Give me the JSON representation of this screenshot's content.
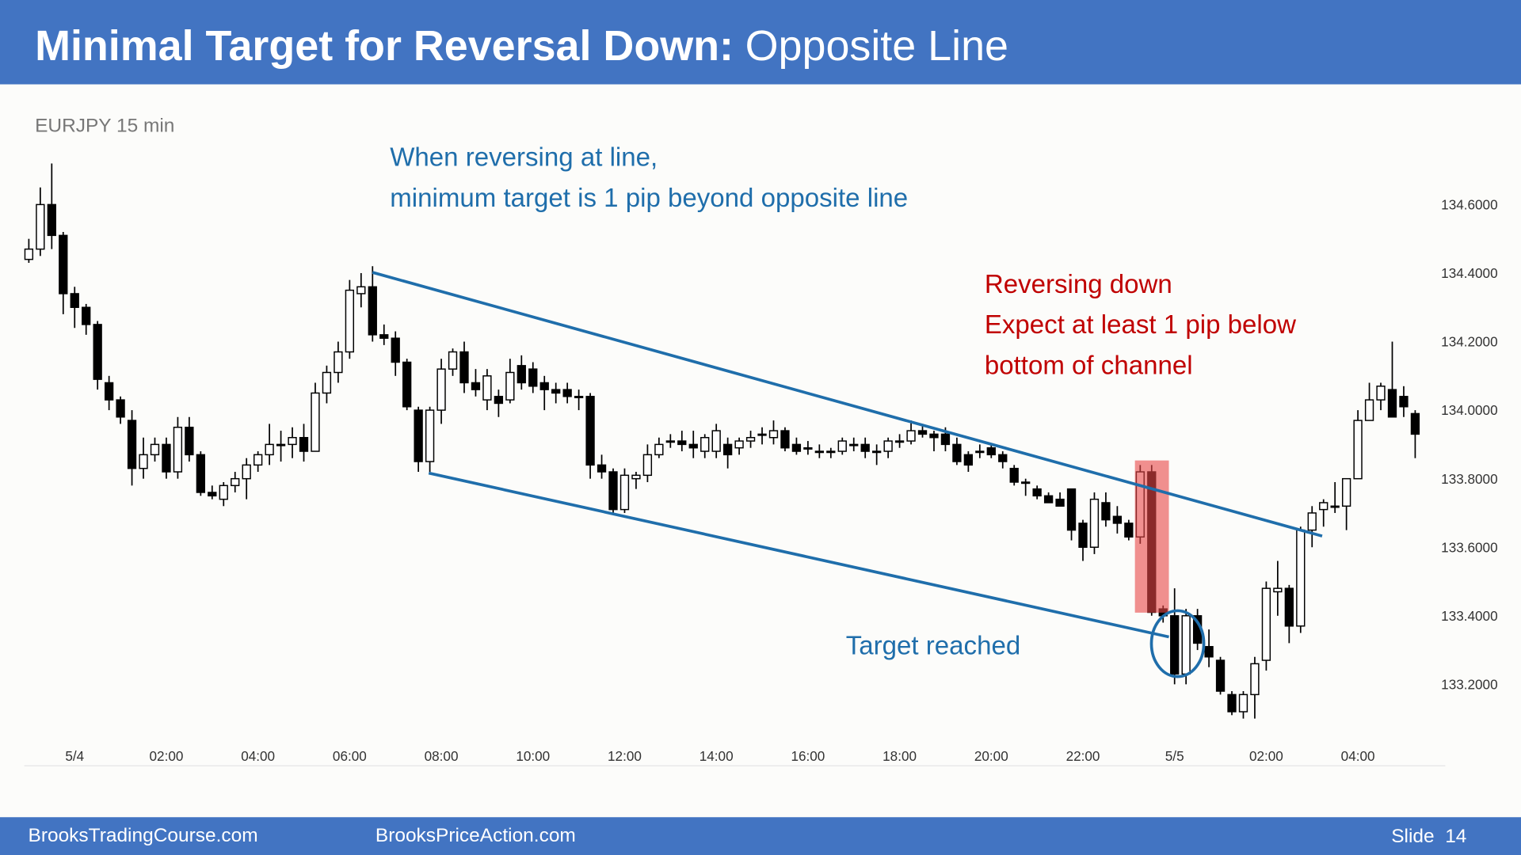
{
  "chart_data": {
    "type": "candlestick",
    "title": [
      "Minimal Target for Reversal Down:",
      "Opposite Line"
    ],
    "subtitle": "EURJPY 15 min",
    "annotations": [
      "When reversing at line,",
      "minimum target is 1 pip beyond opposite line",
      "Reversing down",
      "Expect at least 1 pip below",
      "bottom of channel",
      "Target reached"
    ],
    "up_color": "#ffffff",
    "down_color": "#000000",
    "grid": false,
    "ylim": [
      133.03,
      134.75
    ],
    "yticks": [
      {
        "value": 134.6,
        "label": "134.6000"
      },
      {
        "value": 134.4,
        "label": "134.4000"
      },
      {
        "value": 134.2,
        "label": "134.2000"
      },
      {
        "value": 134.0,
        "label": "134.0000"
      },
      {
        "value": 133.8,
        "label": "133.8000"
      },
      {
        "value": 133.6,
        "label": "133.6000"
      },
      {
        "value": 133.4,
        "label": "133.4000"
      },
      {
        "value": 133.2,
        "label": "133.2000"
      }
    ],
    "xlim": [
      -1.1,
      29.4
    ],
    "xticks": [
      {
        "value": 0,
        "label": "5/4"
      },
      {
        "value": 2,
        "label": "02:00"
      },
      {
        "value": 4,
        "label": "04:00"
      },
      {
        "value": 6,
        "label": "06:00"
      },
      {
        "value": 8,
        "label": "08:00"
      },
      {
        "value": 10,
        "label": "10:00"
      },
      {
        "value": 12,
        "label": "12:00"
      },
      {
        "value": 14,
        "label": "14:00"
      },
      {
        "value": 16,
        "label": "16:00"
      },
      {
        "value": 18,
        "label": "18:00"
      },
      {
        "value": 20,
        "label": "20:00"
      },
      {
        "value": 22,
        "label": "22:00"
      },
      {
        "value": 24,
        "label": "5/5"
      },
      {
        "value": 26,
        "label": "02:00"
      },
      {
        "value": 28,
        "label": "04:00"
      }
    ],
    "x": [
      -1,
      -0.75,
      -0.5,
      -0.25,
      0,
      0.25,
      0.5,
      0.75,
      1,
      1.25,
      1.5,
      1.75,
      2,
      2.25,
      2.5,
      2.75,
      3,
      3.25,
      3.5,
      3.75,
      4,
      4.25,
      4.5,
      4.75,
      5,
      5.25,
      5.5,
      5.75,
      6,
      6.25,
      6.5,
      6.75,
      7,
      7.25,
      7.5,
      7.75,
      8,
      8.25,
      8.5,
      8.75,
      9,
      9.25,
      9.5,
      9.75,
      10,
      10.25,
      10.5,
      10.75,
      11,
      11.25,
      11.5,
      11.75,
      12,
      12.25,
      12.5,
      12.75,
      13,
      13.25,
      13.5,
      13.75,
      14,
      14.25,
      14.5,
      14.75,
      15,
      15.25,
      15.5,
      15.75,
      16,
      16.25,
      16.5,
      16.75,
      17,
      17.25,
      17.5,
      17.75,
      18,
      18.25,
      18.5,
      18.75,
      19,
      19.25,
      19.5,
      19.75,
      20,
      20.25,
      20.5,
      20.75,
      21,
      21.25,
      21.5,
      21.75,
      22,
      22.25,
      22.5,
      22.75,
      23,
      23.25,
      23.5,
      23.75,
      24,
      24.25,
      24.5,
      24.75,
      25,
      25.25,
      25.5,
      25.75,
      26,
      26.25,
      26.5,
      26.75,
      27,
      27.25,
      27.5,
      27.75,
      28,
      28.25,
      28.5,
      28.75,
      29,
      29.25
    ],
    "ohlc": [
      [
        134.44,
        134.5,
        134.43,
        134.47
      ],
      [
        134.47,
        134.65,
        134.45,
        134.6
      ],
      [
        134.6,
        134.72,
        134.47,
        134.51
      ],
      [
        134.51,
        134.52,
        134.28,
        134.34
      ],
      [
        134.34,
        134.36,
        134.24,
        134.3
      ],
      [
        134.3,
        134.31,
        134.22,
        134.25
      ],
      [
        134.25,
        134.26,
        134.06,
        134.09
      ],
      [
        134.08,
        134.1,
        134.0,
        134.03
      ],
      [
        134.03,
        134.04,
        133.96,
        133.98
      ],
      [
        133.97,
        134.0,
        133.78,
        133.83
      ],
      [
        133.83,
        133.92,
        133.8,
        133.87
      ],
      [
        133.87,
        133.92,
        133.85,
        133.9
      ],
      [
        133.9,
        133.92,
        133.8,
        133.82
      ],
      [
        133.82,
        133.98,
        133.8,
        133.95
      ],
      [
        133.95,
        133.98,
        133.85,
        133.87
      ],
      [
        133.87,
        133.88,
        133.75,
        133.76
      ],
      [
        133.76,
        133.78,
        133.74,
        133.75
      ],
      [
        133.74,
        133.79,
        133.72,
        133.78
      ],
      [
        133.78,
        133.82,
        133.76,
        133.8
      ],
      [
        133.8,
        133.86,
        133.74,
        133.84
      ],
      [
        133.84,
        133.88,
        133.82,
        133.87
      ],
      [
        133.87,
        133.96,
        133.84,
        133.9
      ],
      [
        133.9,
        133.94,
        133.85,
        133.9
      ],
      [
        133.9,
        133.95,
        133.86,
        133.92
      ],
      [
        133.92,
        133.96,
        133.85,
        133.88
      ],
      [
        133.88,
        134.08,
        133.88,
        134.05
      ],
      [
        134.05,
        134.13,
        134.02,
        134.11
      ],
      [
        134.11,
        134.2,
        134.08,
        134.17
      ],
      [
        134.17,
        134.38,
        134.15,
        134.35
      ],
      [
        134.34,
        134.4,
        134.3,
        134.36
      ],
      [
        134.36,
        134.42,
        134.2,
        134.22
      ],
      [
        134.22,
        134.25,
        134.19,
        134.21
      ],
      [
        134.21,
        134.23,
        134.1,
        134.14
      ],
      [
        134.14,
        134.15,
        134.0,
        134.01
      ],
      [
        134.0,
        134.01,
        133.82,
        133.85
      ],
      [
        133.85,
        134.01,
        133.82,
        134.0
      ],
      [
        134.0,
        134.15,
        133.96,
        134.12
      ],
      [
        134.12,
        134.18,
        134.1,
        134.17
      ],
      [
        134.17,
        134.2,
        134.05,
        134.08
      ],
      [
        134.08,
        134.12,
        134.04,
        134.06
      ],
      [
        134.03,
        134.12,
        134.0,
        134.1
      ],
      [
        134.04,
        134.06,
        133.98,
        134.02
      ],
      [
        134.03,
        134.15,
        134.02,
        134.11
      ],
      [
        134.13,
        134.16,
        134.06,
        134.08
      ],
      [
        134.12,
        134.14,
        134.05,
        134.07
      ],
      [
        134.08,
        134.1,
        134.0,
        134.06
      ],
      [
        134.06,
        134.08,
        134.02,
        134.05
      ],
      [
        134.06,
        134.08,
        134.02,
        134.04
      ],
      [
        134.04,
        134.06,
        134.0,
        134.04
      ],
      [
        134.04,
        134.05,
        133.8,
        133.84
      ],
      [
        133.84,
        133.87,
        133.8,
        133.82
      ],
      [
        133.82,
        133.83,
        133.7,
        133.71
      ],
      [
        133.71,
        133.83,
        133.7,
        133.81
      ],
      [
        133.8,
        133.82,
        133.77,
        133.81
      ],
      [
        133.81,
        133.9,
        133.79,
        133.87
      ],
      [
        133.87,
        133.92,
        133.86,
        133.9
      ],
      [
        133.91,
        133.93,
        133.89,
        133.91
      ],
      [
        133.91,
        133.94,
        133.88,
        133.9
      ],
      [
        133.9,
        133.94,
        133.86,
        133.89
      ],
      [
        133.88,
        133.93,
        133.86,
        133.92
      ],
      [
        133.88,
        133.96,
        133.86,
        133.94
      ],
      [
        133.9,
        133.92,
        133.83,
        133.87
      ],
      [
        133.89,
        133.92,
        133.87,
        133.91
      ],
      [
        133.91,
        133.94,
        133.89,
        133.92
      ],
      [
        133.93,
        133.95,
        133.9,
        133.93
      ],
      [
        133.92,
        133.97,
        133.9,
        133.94
      ],
      [
        133.94,
        133.95,
        133.88,
        133.89
      ],
      [
        133.9,
        133.92,
        133.87,
        133.88
      ],
      [
        133.89,
        133.91,
        133.87,
        133.89
      ],
      [
        133.88,
        133.9,
        133.86,
        133.88
      ],
      [
        133.88,
        133.89,
        133.86,
        133.88
      ],
      [
        133.88,
        133.92,
        133.87,
        133.91
      ],
      [
        133.9,
        133.92,
        133.88,
        133.9
      ],
      [
        133.9,
        133.92,
        133.86,
        133.88
      ],
      [
        133.88,
        133.9,
        133.84,
        133.88
      ],
      [
        133.88,
        133.92,
        133.86,
        133.91
      ],
      [
        133.91,
        133.93,
        133.89,
        133.91
      ],
      [
        133.91,
        133.97,
        133.9,
        133.94
      ],
      [
        133.94,
        133.96,
        133.92,
        133.93
      ],
      [
        133.93,
        133.94,
        133.88,
        133.92
      ],
      [
        133.93,
        133.95,
        133.88,
        133.9
      ],
      [
        133.9,
        133.92,
        133.84,
        133.85
      ],
      [
        133.87,
        133.88,
        133.82,
        133.84
      ],
      [
        133.88,
        133.9,
        133.86,
        133.88
      ],
      [
        133.89,
        133.9,
        133.86,
        133.87
      ],
      [
        133.87,
        133.88,
        133.83,
        133.85
      ],
      [
        133.83,
        133.84,
        133.78,
        133.79
      ],
      [
        133.79,
        133.8,
        133.75,
        133.79
      ],
      [
        133.77,
        133.78,
        133.74,
        133.75
      ],
      [
        133.75,
        133.76,
        133.73,
        133.73
      ],
      [
        133.74,
        133.76,
        133.72,
        133.72
      ],
      [
        133.77,
        133.77,
        133.62,
        133.65
      ],
      [
        133.67,
        133.68,
        133.56,
        133.6
      ],
      [
        133.6,
        133.76,
        133.58,
        133.74
      ],
      [
        133.73,
        133.76,
        133.66,
        133.68
      ],
      [
        133.69,
        133.72,
        133.64,
        133.67
      ],
      [
        133.67,
        133.68,
        133.62,
        133.63
      ],
      [
        133.63,
        133.84,
        133.61,
        133.82
      ],
      [
        133.82,
        133.84,
        133.4,
        133.41
      ],
      [
        133.42,
        133.43,
        133.38,
        133.4
      ],
      [
        133.4,
        133.48,
        133.2,
        133.23
      ],
      [
        133.23,
        133.42,
        133.2,
        133.4
      ],
      [
        133.4,
        133.42,
        133.3,
        133.32
      ],
      [
        133.31,
        133.36,
        133.25,
        133.28
      ],
      [
        133.27,
        133.28,
        133.17,
        133.18
      ],
      [
        133.17,
        133.18,
        133.11,
        133.12
      ],
      [
        133.12,
        133.18,
        133.1,
        133.17
      ],
      [
        133.17,
        133.28,
        133.1,
        133.26
      ],
      [
        133.27,
        133.5,
        133.24,
        133.48
      ],
      [
        133.47,
        133.56,
        133.4,
        133.48
      ],
      [
        133.48,
        133.49,
        133.32,
        133.37
      ],
      [
        133.37,
        133.66,
        133.35,
        133.65
      ],
      [
        133.65,
        133.72,
        133.6,
        133.7
      ],
      [
        133.71,
        133.74,
        133.66,
        133.73
      ],
      [
        133.72,
        133.79,
        133.7,
        133.72
      ],
      [
        133.72,
        133.8,
        133.65,
        133.8
      ],
      [
        133.8,
        134.0,
        133.8,
        133.97
      ],
      [
        133.97,
        134.08,
        133.97,
        134.03
      ],
      [
        134.03,
        134.08,
        134.0,
        134.07
      ],
      [
        134.06,
        134.2,
        133.98,
        133.98
      ],
      [
        134.04,
        134.07,
        133.98,
        134.01
      ],
      [
        133.99,
        134.0,
        133.86,
        133.93
      ]
    ]
  },
  "footer": {
    "left": "BrooksTradingCourse.com",
    "center": "BrooksPriceAction.com",
    "slide": "Slide  14"
  }
}
